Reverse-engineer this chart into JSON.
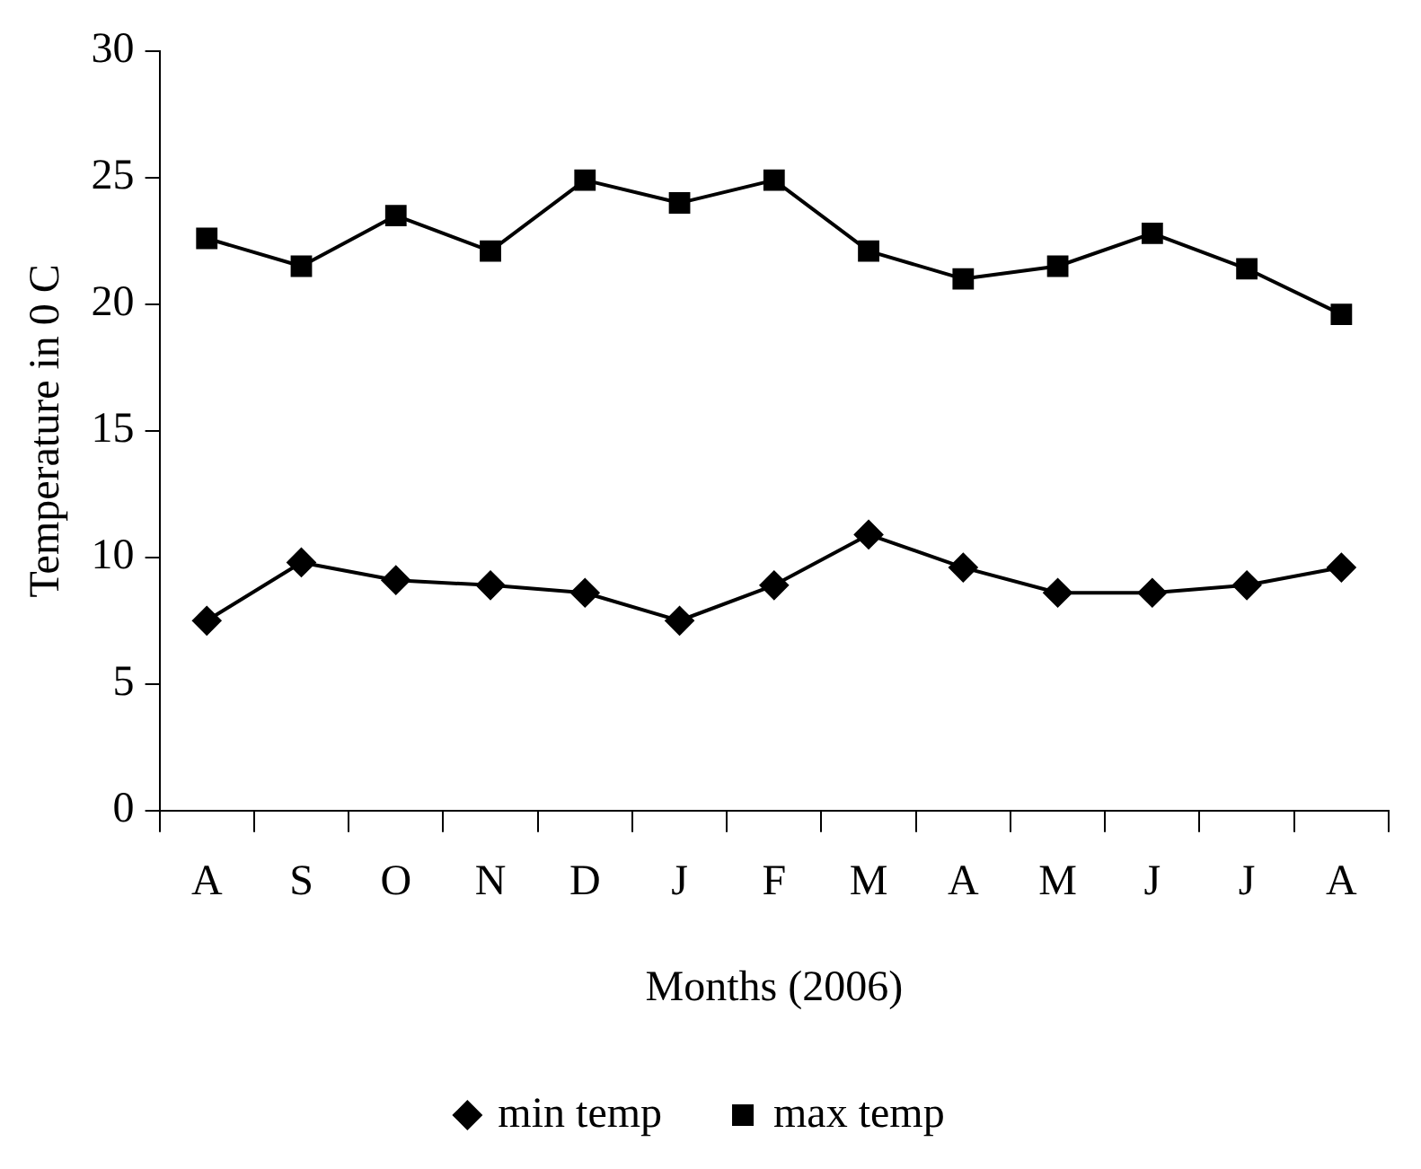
{
  "chart_data": {
    "type": "line",
    "xlabel": "Months (2006)",
    "ylabel": "Temperature in 0 C",
    "categories": [
      "A",
      "S",
      "O",
      "N",
      "D",
      "J",
      "F",
      "M",
      "A",
      "M",
      "J",
      "J",
      "A"
    ],
    "series": [
      {
        "name": "min temp",
        "color": "#000000",
        "marker": "diamond",
        "values": [
          7.5,
          9.8,
          9.1,
          8.9,
          8.6,
          7.5,
          8.9,
          10.9,
          9.6,
          8.6,
          8.6,
          8.9,
          9.6
        ]
      },
      {
        "name": "max temp",
        "color": "#000000",
        "marker": "square",
        "values": [
          22.6,
          21.5,
          23.5,
          22.1,
          24.9,
          24.0,
          24.9,
          22.1,
          21.0,
          21.5,
          22.8,
          21.4,
          19.6
        ]
      }
    ],
    "ylim": [
      0,
      30
    ],
    "yticks": [
      0,
      5,
      10,
      15,
      20,
      25,
      30
    ],
    "grid": false,
    "legend": "bottom",
    "line_style": "solid"
  }
}
